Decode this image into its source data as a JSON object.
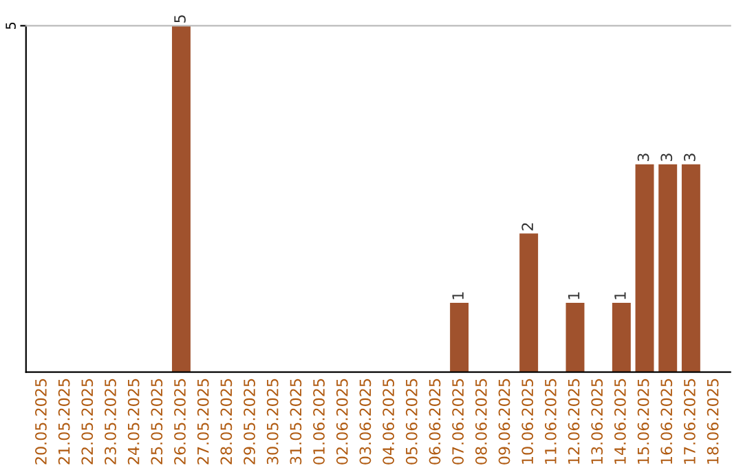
{
  "chart_data": {
    "type": "bar",
    "categories": [
      "20.05.2025",
      "21.05.2025",
      "22.05.2025",
      "23.05.2025",
      "24.05.2025",
      "25.05.2025",
      "26.05.2025",
      "27.05.2025",
      "28.05.2025",
      "29.05.2025",
      "30.05.2025",
      "31.05.2025",
      "01.06.2025",
      "02.06.2025",
      "03.06.2025",
      "04.06.2025",
      "05.06.2025",
      "06.06.2025",
      "07.06.2025",
      "08.06.2025",
      "09.06.2025",
      "10.06.2025",
      "11.06.2025",
      "12.06.2025",
      "13.06.2025",
      "14.06.2025",
      "15.06.2025",
      "16.06.2025",
      "17.06.2025",
      "18.06.2025"
    ],
    "values": [
      0,
      0,
      0,
      0,
      0,
      0,
      5,
      0,
      0,
      0,
      0,
      0,
      0,
      0,
      0,
      0,
      0,
      0,
      1,
      0,
      0,
      2,
      0,
      1,
      0,
      1,
      3,
      3,
      3,
      0
    ],
    "value_labels": [
      null,
      null,
      null,
      null,
      null,
      null,
      "5",
      null,
      null,
      null,
      null,
      null,
      null,
      null,
      null,
      null,
      null,
      null,
      "1",
      null,
      null,
      "2",
      null,
      "1",
      null,
      "1",
      "3",
      "3",
      "3",
      null
    ],
    "color": "#a0522d",
    "ylim": [
      0,
      5
    ],
    "yticks": [
      5
    ],
    "legend": false
  }
}
